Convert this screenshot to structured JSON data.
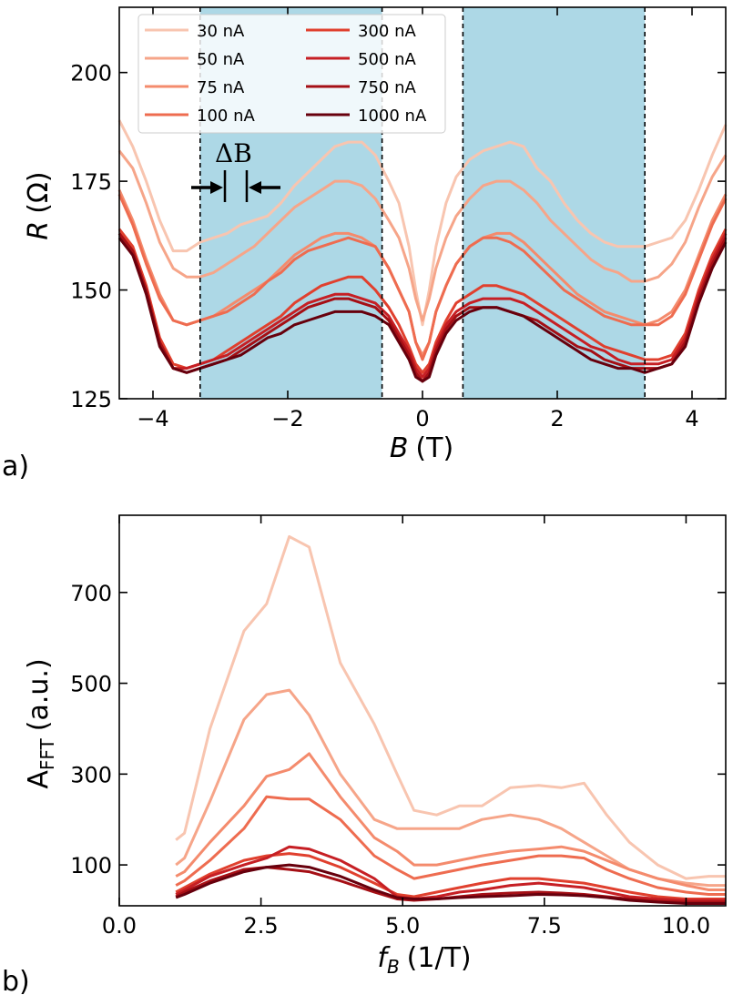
{
  "chart_data": [
    {
      "panel": "a)",
      "type": "line",
      "xlabel_var": "B",
      "xlabel_unit": "(T)",
      "ylabel_var": "R",
      "ylabel_unit": "(Ω)",
      "xlim": [
        -4.5,
        4.5
      ],
      "ylim": [
        125,
        215
      ],
      "xticks": [
        -4,
        -2,
        0,
        2,
        4
      ],
      "xtick_labels": [
        "−4",
        "−2",
        "0",
        "2",
        "4"
      ],
      "yticks": [
        125,
        150,
        175,
        200
      ],
      "ytick_labels": [
        "125",
        "150",
        "175",
        "200"
      ],
      "shaded_regions": [
        [
          -3.3,
          -0.6
        ],
        [
          0.6,
          3.3
        ]
      ],
      "shade_color": "#add8e6",
      "dashed_lines": [
        -3.3,
        -0.6,
        0.6,
        3.3
      ],
      "annotation": "ΔB",
      "annotation_span": [
        -3.0,
        -2.6
      ],
      "legend": {
        "location": "top-left",
        "columns": 2
      },
      "x": [
        -4.5,
        -4.3,
        -4.1,
        -3.9,
        -3.7,
        -3.5,
        -3.3,
        -3.1,
        -2.9,
        -2.7,
        -2.5,
        -2.3,
        -2.1,
        -1.9,
        -1.7,
        -1.5,
        -1.3,
        -1.1,
        -0.9,
        -0.7,
        -0.5,
        -0.35,
        -0.2,
        -0.1,
        0,
        0.1,
        0.2,
        0.35,
        0.5,
        0.7,
        0.9,
        1.1,
        1.3,
        1.5,
        1.7,
        1.9,
        2.1,
        2.3,
        2.5,
        2.7,
        2.9,
        3.1,
        3.3,
        3.5,
        3.7,
        3.9,
        4.1,
        4.3,
        4.5
      ],
      "series": [
        {
          "name": "30 nA",
          "color": "#f8c5b0",
          "values": [
            189,
            183,
            175,
            166,
            159,
            159,
            161,
            162,
            163,
            165,
            166,
            167,
            170,
            174,
            177,
            180,
            183,
            184,
            184,
            181,
            175,
            170,
            160,
            150,
            142,
            150,
            160,
            170,
            176,
            180,
            182,
            183,
            184,
            183,
            178,
            175,
            170,
            166,
            163,
            161,
            160,
            160,
            160,
            161,
            162,
            166,
            173,
            181,
            188
          ]
        },
        {
          "name": "50 nA",
          "color": "#f6a589",
          "values": [
            182,
            178,
            170,
            161,
            155,
            153,
            153,
            154,
            156,
            158,
            160,
            163,
            166,
            169,
            171,
            173,
            175,
            175,
            174,
            171,
            166,
            162,
            155,
            148,
            143,
            148,
            155,
            162,
            167,
            171,
            174,
            175,
            175,
            173,
            170,
            166,
            163,
            160,
            157,
            155,
            154,
            152,
            152,
            153,
            156,
            161,
            169,
            176,
            181
          ]
        },
        {
          "name": "75 nA",
          "color": "#f48b6d",
          "values": [
            173,
            166,
            157,
            149,
            143,
            142,
            143,
            144,
            146,
            148,
            150,
            152,
            155,
            158,
            160,
            162,
            163,
            163,
            162,
            160,
            155,
            150,
            145,
            138,
            135,
            138,
            145,
            151,
            156,
            160,
            162,
            163,
            163,
            161,
            158,
            155,
            152,
            149,
            147,
            145,
            144,
            143,
            142,
            143,
            145,
            150,
            158,
            166,
            172
          ]
        },
        {
          "name": "100 nA",
          "color": "#ee6c50",
          "values": [
            172,
            165,
            156,
            148,
            143,
            142,
            143,
            144,
            145,
            147,
            149,
            152,
            154,
            157,
            159,
            160,
            161,
            162,
            161,
            160,
            155,
            150,
            145,
            138,
            134,
            138,
            145,
            151,
            156,
            160,
            162,
            162,
            161,
            159,
            156,
            153,
            150,
            148,
            146,
            144,
            143,
            142,
            142,
            142,
            144,
            149,
            157,
            165,
            171
          ]
        },
        {
          "name": "300 nA",
          "color": "#e0402e",
          "values": [
            164,
            160,
            151,
            139,
            133,
            132,
            133,
            134,
            136,
            138,
            140,
            142,
            144,
            147,
            149,
            151,
            152,
            153,
            153,
            150,
            146,
            142,
            137,
            133,
            131,
            133,
            138,
            143,
            147,
            149,
            151,
            151,
            150,
            149,
            147,
            145,
            143,
            141,
            139,
            137,
            136,
            135,
            134,
            134,
            135,
            140,
            150,
            158,
            164
          ]
        },
        {
          "name": "500 nA",
          "color": "#c61f24",
          "values": [
            163,
            159,
            150,
            138,
            132,
            132,
            133,
            134,
            135,
            137,
            139,
            141,
            143,
            145,
            147,
            148,
            149,
            149,
            148,
            147,
            144,
            140,
            136,
            132,
            130,
            132,
            137,
            142,
            145,
            147,
            148,
            148,
            148,
            147,
            145,
            143,
            141,
            139,
            137,
            136,
            134,
            133,
            133,
            133,
            134,
            139,
            149,
            157,
            163
          ]
        },
        {
          "name": "750 nA",
          "color": "#a50f15",
          "values": [
            163,
            159,
            150,
            138,
            132,
            131,
            132,
            133,
            134,
            136,
            138,
            140,
            142,
            144,
            146,
            147,
            148,
            148,
            147,
            146,
            143,
            139,
            135,
            131,
            129,
            131,
            136,
            141,
            144,
            146,
            146,
            146,
            145,
            144,
            143,
            141,
            139,
            137,
            136,
            134,
            133,
            132,
            132,
            132,
            133,
            138,
            148,
            156,
            162
          ]
        },
        {
          "name": "1000 nA",
          "color": "#67000d",
          "values": [
            162,
            158,
            149,
            137,
            132,
            131,
            132,
            133,
            134,
            135,
            137,
            139,
            140,
            142,
            143,
            144,
            145,
            145,
            145,
            144,
            142,
            138,
            134,
            130,
            129,
            130,
            135,
            140,
            143,
            145,
            146,
            146,
            145,
            144,
            142,
            140,
            138,
            136,
            134,
            133,
            132,
            132,
            131,
            132,
            133,
            137,
            147,
            155,
            161
          ]
        }
      ]
    },
    {
      "panel": "b)",
      "type": "line",
      "xlabel_var": "f",
      "xlabel_sub": "B",
      "xlabel_unit": "(1/T)",
      "ylabel_main": "A",
      "ylabel_sub": "FFT",
      "ylabel_unit": "(a.u.)",
      "xlim": [
        0,
        10.7
      ],
      "ylim": [
        10,
        870
      ],
      "xticks": [
        0,
        2.5,
        5,
        7.5,
        10
      ],
      "xtick_labels": [
        "0.0",
        "2.5",
        "5.0",
        "7.5",
        "10.0"
      ],
      "yticks": [
        100,
        300,
        500,
        700
      ],
      "ytick_labels": [
        "100",
        "300",
        "500",
        "700"
      ],
      "x": [
        1.0,
        1.15,
        1.6,
        2.2,
        2.6,
        3.0,
        3.35,
        3.9,
        4.5,
        4.9,
        5.2,
        5.6,
        6.0,
        6.4,
        6.9,
        7.4,
        7.8,
        8.2,
        8.6,
        9.0,
        9.5,
        10.0,
        10.4,
        10.7
      ],
      "series": [
        {
          "name": "30 nA",
          "color": "#f8c5b0",
          "values": [
            155,
            170,
            400,
            615,
            675,
            823,
            800,
            545,
            410,
            300,
            220,
            210,
            230,
            230,
            270,
            275,
            270,
            280,
            210,
            150,
            100,
            70,
            75,
            75
          ]
        },
        {
          "name": "50 nA",
          "color": "#f6a589",
          "values": [
            100,
            115,
            240,
            420,
            475,
            485,
            430,
            300,
            200,
            180,
            180,
            180,
            180,
            200,
            210,
            200,
            180,
            150,
            120,
            90,
            70,
            60,
            55,
            55
          ]
        },
        {
          "name": "75 nA",
          "color": "#f48b6d",
          "values": [
            75,
            85,
            150,
            230,
            295,
            310,
            345,
            250,
            160,
            130,
            100,
            100,
            110,
            120,
            130,
            135,
            140,
            130,
            110,
            90,
            70,
            55,
            45,
            45
          ]
        },
        {
          "name": "100 nA",
          "color": "#ee6c50",
          "values": [
            55,
            65,
            110,
            180,
            250,
            245,
            245,
            200,
            120,
            90,
            70,
            80,
            90,
            100,
            110,
            120,
            120,
            115,
            90,
            70,
            50,
            40,
            35,
            35
          ]
        },
        {
          "name": "300 nA",
          "color": "#e0402e",
          "values": [
            40,
            50,
            80,
            110,
            120,
            125,
            120,
            95,
            60,
            35,
            30,
            40,
            50,
            60,
            70,
            70,
            65,
            60,
            50,
            40,
            30,
            25,
            25,
            25
          ]
        },
        {
          "name": "500 nA",
          "color": "#c61f24",
          "values": [
            35,
            45,
            75,
            100,
            115,
            140,
            135,
            110,
            70,
            30,
            25,
            30,
            40,
            45,
            55,
            60,
            55,
            50,
            40,
            30,
            25,
            22,
            22,
            22
          ]
        },
        {
          "name": "750 nA",
          "color": "#a50f15",
          "values": [
            30,
            40,
            65,
            90,
            95,
            90,
            85,
            65,
            40,
            25,
            22,
            25,
            30,
            35,
            38,
            40,
            38,
            35,
            30,
            25,
            20,
            18,
            18,
            18
          ]
        },
        {
          "name": "1000 nA",
          "color": "#67000d",
          "values": [
            28,
            35,
            60,
            85,
            95,
            100,
            95,
            75,
            45,
            28,
            25,
            25,
            28,
            30,
            32,
            35,
            34,
            32,
            28,
            22,
            18,
            15,
            15,
            15
          ]
        }
      ]
    }
  ]
}
